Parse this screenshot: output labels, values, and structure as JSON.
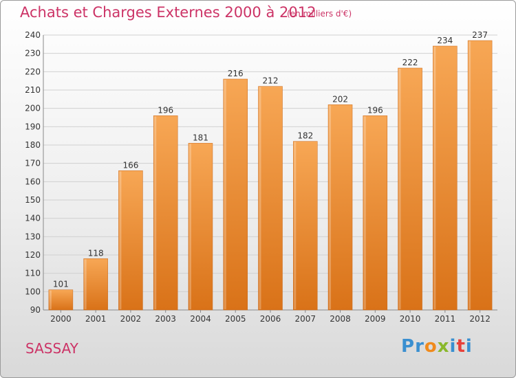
{
  "header": {
    "title": "Achats et Charges Externes 2000 à 2012",
    "subtitle": "(en milliers d'€)"
  },
  "footer": {
    "place": "SASSAY",
    "logo_letters": [
      "P",
      "r",
      "o",
      "x",
      "i",
      "t",
      "i"
    ],
    "logo_colors": [
      "#3a8fd0",
      "#3a8fd0",
      "#f08a1c",
      "#8ab82c",
      "#3a8fd0",
      "#e8403a",
      "#3a8fd0"
    ]
  },
  "chart_data": {
    "type": "bar",
    "categories": [
      "2000",
      "2001",
      "2002",
      "2003",
      "2004",
      "2005",
      "2006",
      "2007",
      "2008",
      "2009",
      "2010",
      "2011",
      "2012"
    ],
    "values": [
      101,
      118,
      166,
      196,
      181,
      216,
      212,
      182,
      202,
      196,
      222,
      234,
      237
    ],
    "ylim": [
      90,
      240
    ],
    "yticks": [
      90,
      100,
      110,
      120,
      130,
      140,
      150,
      160,
      170,
      180,
      190,
      200,
      210,
      220,
      230,
      240
    ],
    "grid": true,
    "bar_color_top": "#f7a755",
    "bar_color_bottom": "#d97218"
  }
}
